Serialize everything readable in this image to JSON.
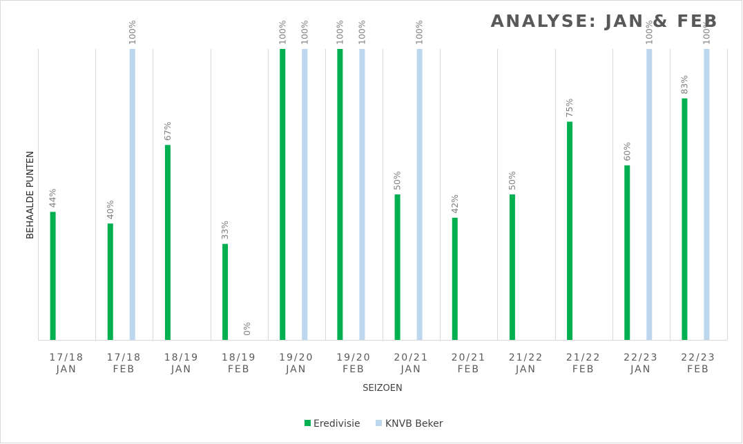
{
  "chart_data": {
    "type": "bar",
    "title": "ANALYSE:  JAN & FEB",
    "xlabel": "SEIZOEN",
    "ylabel": "BEHAALDE PUNTEN",
    "ylim": [
      0,
      100
    ],
    "value_suffix": "%",
    "categories": [
      [
        "17/18",
        "JAN"
      ],
      [
        "17/18",
        "FEB"
      ],
      [
        "18/19",
        "JAN"
      ],
      [
        "18/19",
        "FEB"
      ],
      [
        "19/20",
        "JAN"
      ],
      [
        "19/20",
        "FEB"
      ],
      [
        "20/21",
        "JAN"
      ],
      [
        "20/21",
        "FEB"
      ],
      [
        "21/22",
        "JAN"
      ],
      [
        "21/22",
        "FEB"
      ],
      [
        "22/23",
        "JAN"
      ],
      [
        "22/23",
        "FEB"
      ]
    ],
    "series": [
      {
        "name": "Eredivisie",
        "color": "#00b050",
        "values": [
          44,
          40,
          67,
          33,
          100,
          100,
          50,
          42,
          50,
          75,
          60,
          83
        ]
      },
      {
        "name": "KNVB Beker",
        "color": "#bdd7ee",
        "values": [
          null,
          100,
          null,
          0,
          100,
          100,
          100,
          null,
          null,
          null,
          100,
          100
        ]
      }
    ],
    "grid": "vertical-category-separators",
    "legend_position": "bottom"
  }
}
